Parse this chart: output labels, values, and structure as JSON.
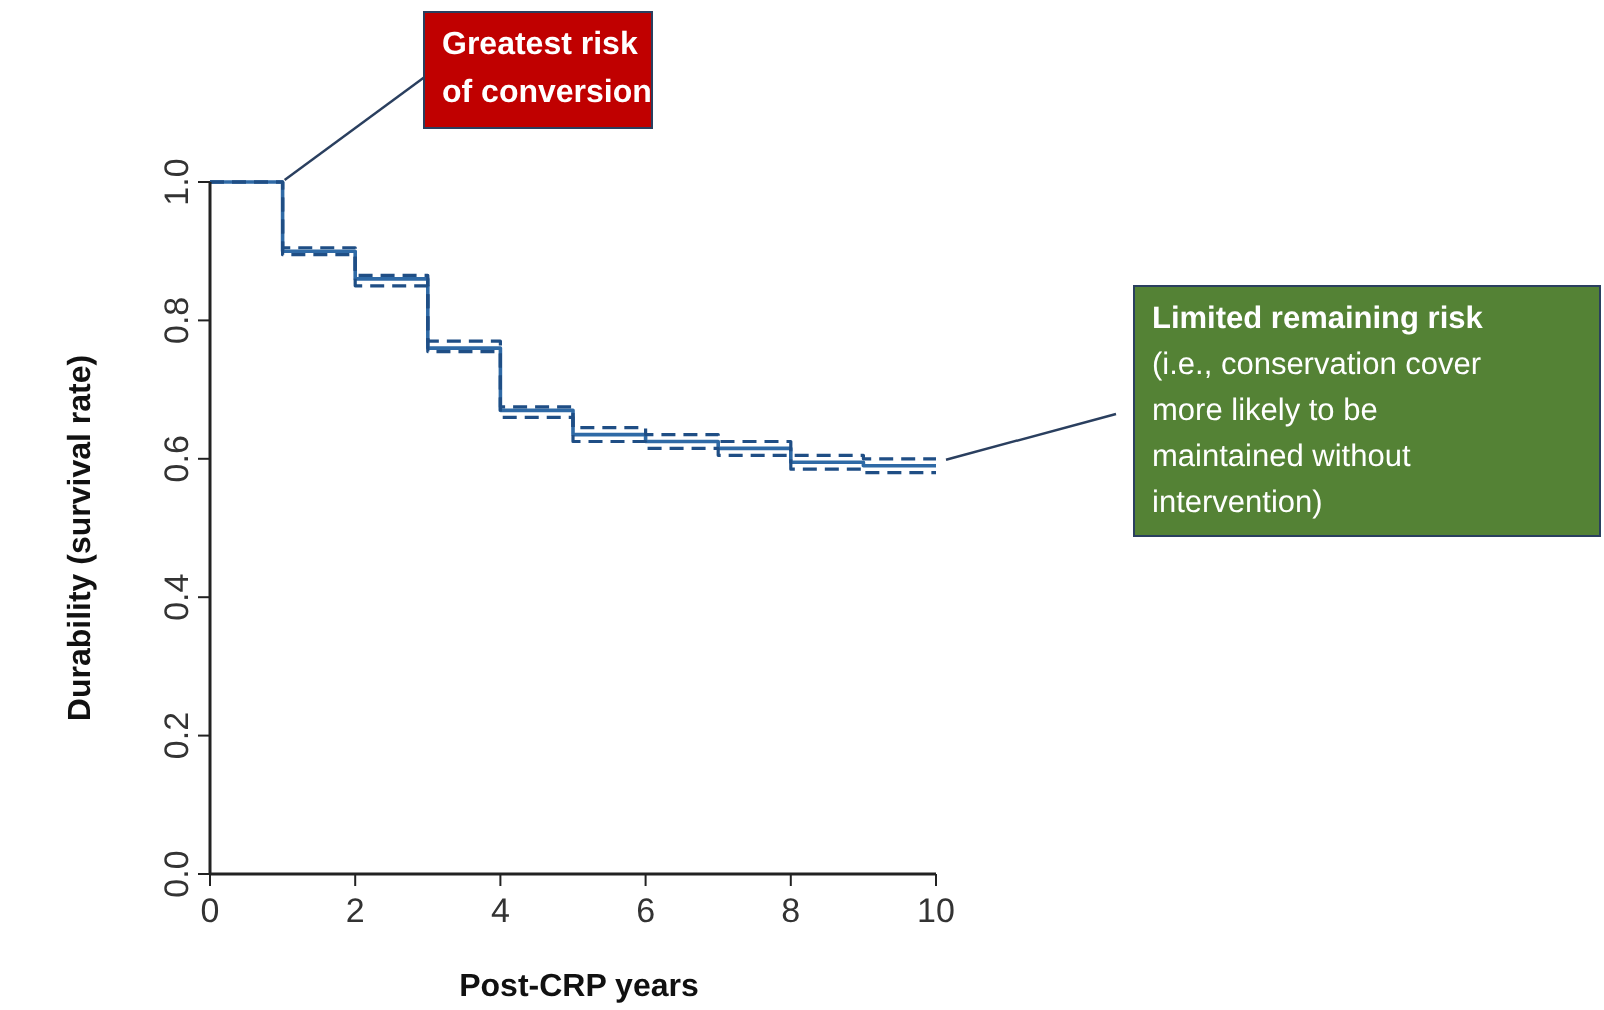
{
  "chart_data": {
    "type": "step",
    "xlabel": "Post-CRP years",
    "ylabel": "Durability (survival rate)",
    "x": [
      0,
      1,
      2,
      3,
      4,
      5,
      6,
      7,
      8,
      9,
      10
    ],
    "series": [
      {
        "color": "#2f6aa6",
        "values": [
          1.0,
          0.9,
          0.86,
          0.76,
          0.67,
          0.635,
          0.625,
          0.615,
          0.595,
          0.59,
          0.59
        ],
        "line_style": "solid"
      },
      {
        "color": "#1f4e85",
        "values": [
          1.0,
          0.905,
          0.865,
          0.77,
          0.675,
          0.645,
          0.635,
          0.625,
          0.605,
          0.6,
          0.6
        ],
        "line_style": "dashed"
      },
      {
        "color": "#1f4e85",
        "values": [
          1.0,
          0.895,
          0.85,
          0.755,
          0.66,
          0.625,
          0.615,
          0.605,
          0.585,
          0.58,
          0.58
        ],
        "line_style": "dashed"
      }
    ],
    "xlim": [
      0,
      10
    ],
    "xticks": [
      0,
      2,
      4,
      6,
      8,
      10
    ],
    "ylim": [
      0,
      1
    ],
    "yticks": [
      {
        "value": 0,
        "label": "0.0"
      },
      0.2,
      0.4,
      0.6,
      0.8,
      {
        "value": 1,
        "label": "1.0"
      }
    ],
    "grid": false,
    "marker": "none",
    "annotations": [
      {
        "text": "Greatest risk\nof conversion",
        "x": 1,
        "y": 1.0
      },
      {
        "text": "Limited remaining risk\n(i.e., conservation cover\nmore likely to be\nmaintained without\nintervention)",
        "x": 10,
        "y": 0.59
      }
    ]
  }
}
